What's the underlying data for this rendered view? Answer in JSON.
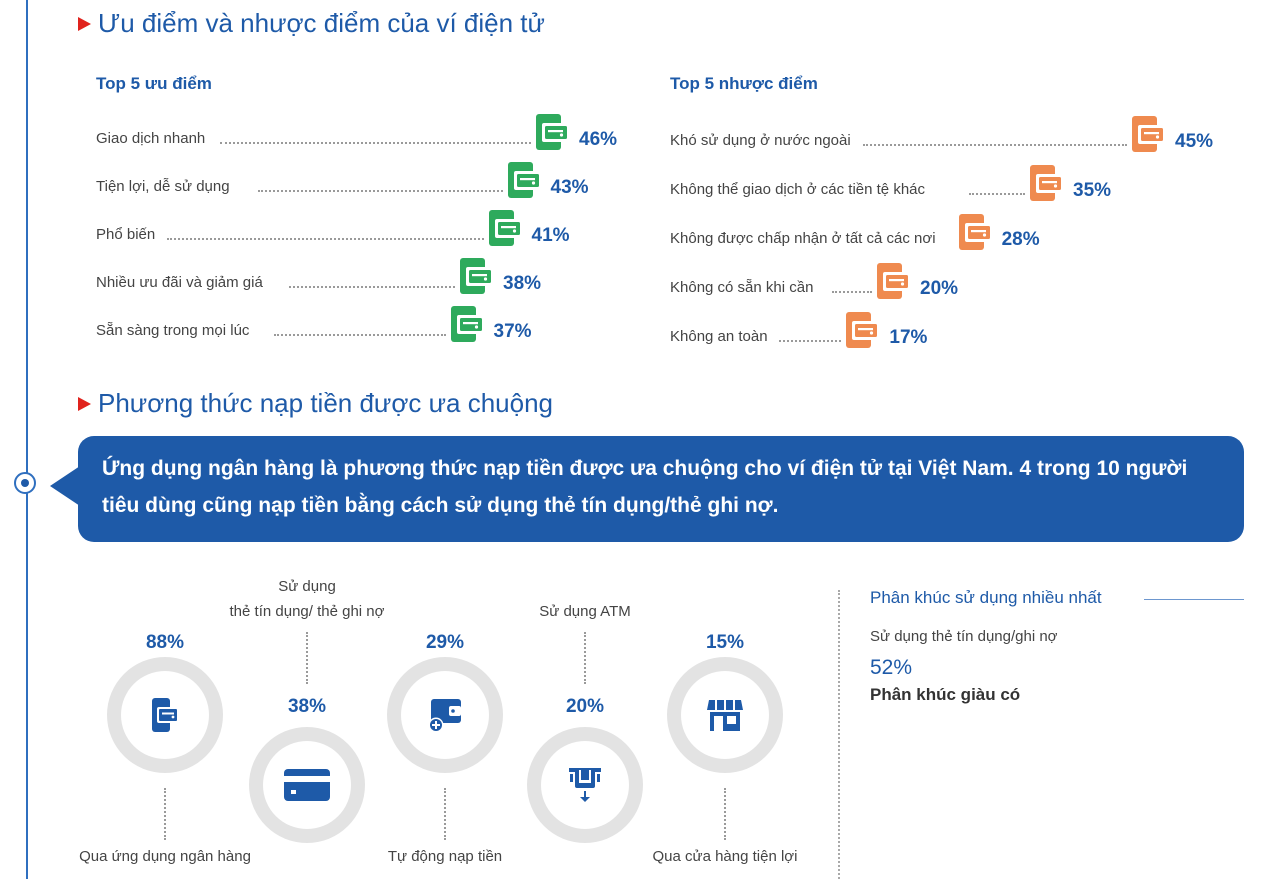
{
  "sections": {
    "pros_cons_title": "Ưu điểm và nhược điểm của ví điện tử",
    "topup_title": "Phương thức nạp tiền được ưa chuộng"
  },
  "callout": {
    "text": "Ứng dụng ngân hàng là phương thức nạp tiền được ưa chuộng cho ví điện tử tại Việt Nam. 4 trong 10 người tiêu dùng cũng nạp tiền bằng cách sử dụng thẻ tín dụng/thẻ ghi nợ."
  },
  "segment": {
    "title": "Phân khúc sử dụng nhiều nhất",
    "subtitle": "Sử dụng thẻ tín dụng/ghi nợ",
    "value": "52%",
    "name": "Phân khúc giàu có"
  },
  "colors": {
    "brand_blue": "#1e5aa8",
    "pro_green": "#2eaa5c",
    "con_orange": "#ef8a4f",
    "accent_red": "#e0231d",
    "ring_grey": "#e3e3e3"
  },
  "chart_data": [
    {
      "type": "bar",
      "title": "Top 5 ưu điểm",
      "categories": [
        "Giao dịch nhanh",
        "Tiện lợi, dễ sử dụng",
        "Phổ biến",
        "Nhiều ưu đãi và giảm giá",
        "Sẵn sàng trong mọi lúc"
      ],
      "values": [
        46,
        43,
        41,
        38,
        37
      ],
      "labels": [
        "46%",
        "43%",
        "41%",
        "38%",
        "37%"
      ],
      "unit": "%",
      "icon": "wallet-icon",
      "color": "#2eaa5c"
    },
    {
      "type": "bar",
      "title": "Top 5 nhược điểm",
      "categories": [
        "Khó sử dụng ở nước ngoài",
        "Không thể giao dịch ở các tiền tệ khác",
        "Không được chấp nhận ở tất cả các nơi",
        "Không có sẵn khi cần",
        "Không an toàn"
      ],
      "values": [
        45,
        35,
        28,
        20,
        17
      ],
      "labels": [
        "45%",
        "35%",
        "28%",
        "20%",
        "17%"
      ],
      "unit": "%",
      "icon": "wallet-icon",
      "color": "#ef8a4f"
    },
    {
      "type": "bar",
      "title": "",
      "categories": [
        "Qua ứng dụng ngân hàng",
        "Sử dụng thẻ tín dụng/ thẻ ghi nợ",
        "Tự động nạp tiền",
        "Sử dụng ATM",
        "Qua cửa hàng tiện lợi"
      ],
      "category_lines": [
        [
          "Qua ứng dụng ngân hàng"
        ],
        [
          "Sử dụng",
          "thẻ tín dụng/ thẻ ghi nợ"
        ],
        [
          "Tự động nạp tiền"
        ],
        [
          "Sử dụng ATM"
        ],
        [
          "Qua cửa hàng tiện lợi"
        ]
      ],
      "values": [
        88,
        38,
        29,
        20,
        15
      ],
      "labels": [
        "88%",
        "38%",
        "29%",
        "20%",
        "15%"
      ],
      "icons": [
        "banking-app-icon",
        "credit-card-icon",
        "auto-topup-wallet-icon",
        "atm-icon",
        "convenience-store-icon"
      ],
      "unit": "%"
    }
  ]
}
